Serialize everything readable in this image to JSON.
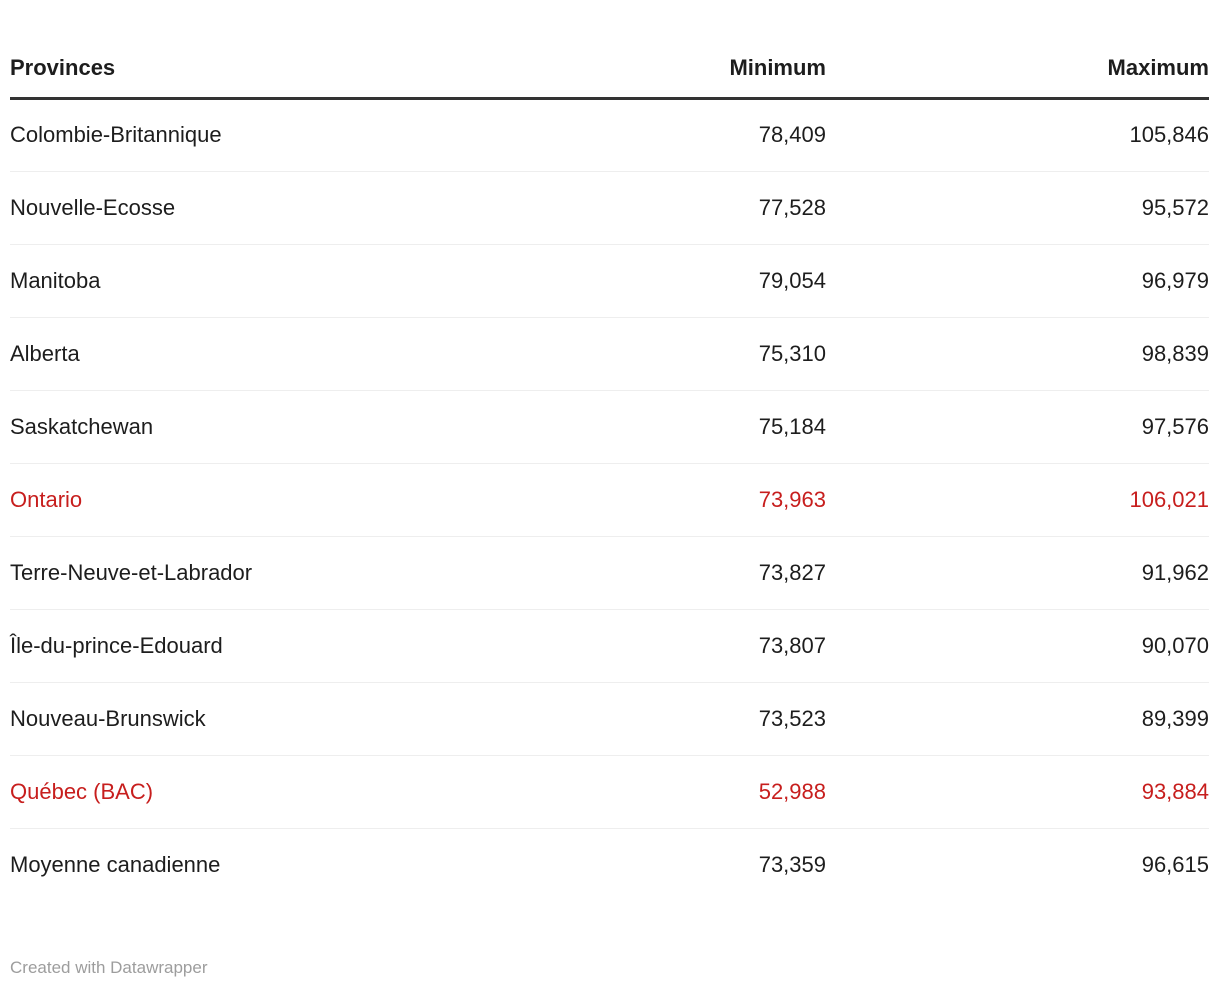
{
  "colors": {
    "background": "#ffffff",
    "text": "#1d1d1d",
    "highlight": "#c71e1d",
    "header_rule": "#333333",
    "row_divider": "#eeeeee",
    "footer_text": "#9d9d9d"
  },
  "table": {
    "columns": [
      {
        "label": "Provinces",
        "align": "left"
      },
      {
        "label": "Minimum",
        "align": "right"
      },
      {
        "label": "Maximum",
        "align": "right"
      }
    ],
    "rows": [
      {
        "province": "Colombie-Britannique",
        "minimum": "78,409",
        "maximum": "105,846",
        "highlight": false
      },
      {
        "province": "Nouvelle-Ecosse",
        "minimum": "77,528",
        "maximum": "95,572",
        "highlight": false
      },
      {
        "province": "Manitoba",
        "minimum": "79,054",
        "maximum": "96,979",
        "highlight": false
      },
      {
        "province": "Alberta",
        "minimum": "75,310",
        "maximum": "98,839",
        "highlight": false
      },
      {
        "province": "Saskatchewan",
        "minimum": "75,184",
        "maximum": "97,576",
        "highlight": false
      },
      {
        "province": "Ontario",
        "minimum": "73,963",
        "maximum": "106,021",
        "highlight": true
      },
      {
        "province": "Terre-Neuve-et-Labrador",
        "minimum": "73,827",
        "maximum": "91,962",
        "highlight": false
      },
      {
        "province": "Île-du-prince-Edouard",
        "minimum": "73,807",
        "maximum": "90,070",
        "highlight": false
      },
      {
        "province": "Nouveau-Brunswick",
        "minimum": "73,523",
        "maximum": "89,399",
        "highlight": false
      },
      {
        "province": "Québec (BAC)",
        "minimum": "52,988",
        "maximum": "93,884",
        "highlight": true
      },
      {
        "province": "Moyenne canadienne",
        "minimum": "73,359",
        "maximum": "96,615",
        "highlight": false
      }
    ]
  },
  "footer": {
    "attribution": "Created with Datawrapper"
  },
  "chart_data": {
    "type": "table",
    "columns": [
      "Provinces",
      "Minimum",
      "Maximum"
    ],
    "rows": [
      [
        "Colombie-Britannique",
        78409,
        105846
      ],
      [
        "Nouvelle-Ecosse",
        77528,
        95572
      ],
      [
        "Manitoba",
        79054,
        96979
      ],
      [
        "Alberta",
        75310,
        98839
      ],
      [
        "Saskatchewan",
        75184,
        97576
      ],
      [
        "Ontario",
        73963,
        106021
      ],
      [
        "Terre-Neuve-et-Labrador",
        73827,
        91962
      ],
      [
        "Île-du-prince-Edouard",
        73807,
        90070
      ],
      [
        "Nouveau-Brunswick",
        73523,
        89399
      ],
      [
        "Québec (BAC)",
        52988,
        93884
      ],
      [
        "Moyenne canadienne",
        73359,
        96615
      ]
    ],
    "highlighted_rows": [
      "Ontario",
      "Québec (BAC)"
    ],
    "highlight_color": "#c71e1d"
  }
}
